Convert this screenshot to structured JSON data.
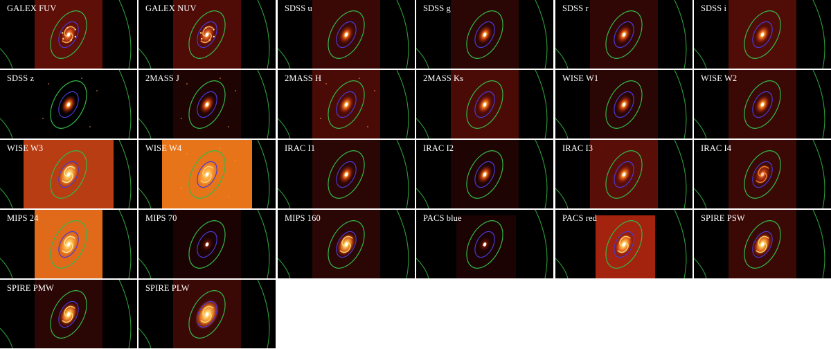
{
  "panels": [
    {
      "label": "GALEX FUV",
      "bg": "#5e0f08",
      "cov": "tall",
      "core": "spiral-blotchy"
    },
    {
      "label": "GALEX NUV",
      "bg": "#4f0c07",
      "cov": "tall",
      "core": "spiral-blotchy"
    },
    {
      "label": "SDSS u",
      "bg": "#3a0906",
      "cov": "tall",
      "core": "bulge"
    },
    {
      "label": "SDSS g",
      "bg": "#2a0604",
      "cov": "tall",
      "core": "bulge"
    },
    {
      "label": "SDSS r",
      "bg": "#300705",
      "cov": "tall",
      "core": "bulge"
    },
    {
      "label": "SDSS i",
      "bg": "#500c07",
      "cov": "tall",
      "core": "bulge-soft"
    },
    {
      "label": "SDSS z",
      "bg": "#000000",
      "cov": "tall",
      "core": "bulge"
    },
    {
      "label": "2MASS J",
      "bg": "#1e0403",
      "cov": "tall",
      "core": "bulge"
    },
    {
      "label": "2MASS H",
      "bg": "#4a0b06",
      "cov": "tall",
      "core": "bulge-soft"
    },
    {
      "label": "2MASS Ks",
      "bg": "#4a0b06",
      "cov": "tall",
      "core": "bulge-soft"
    },
    {
      "label": "WISE W1",
      "bg": "#2a0604",
      "cov": "tall",
      "core": "bulge"
    },
    {
      "label": "WISE W2",
      "bg": "#3a0906",
      "cov": "tall",
      "core": "bulge-soft"
    },
    {
      "label": "WISE W3",
      "bg": "#b83d12",
      "cov": "wide",
      "core": "spiral-bright"
    },
    {
      "label": "WISE W4",
      "bg": "#e8741a",
      "cov": "wide",
      "core": "spiral-ring"
    },
    {
      "label": "IRAC I1",
      "bg": "#2a0604",
      "cov": "tall",
      "core": "bulge"
    },
    {
      "label": "IRAC I2",
      "bg": "#1e0403",
      "cov": "tall",
      "core": "bulge"
    },
    {
      "label": "IRAC I3",
      "bg": "#5a0e08",
      "cov": "tall",
      "core": "bulge-soft"
    },
    {
      "label": "IRAC I4",
      "bg": "#3a0906",
      "cov": "tall",
      "core": "spiral-faint"
    },
    {
      "label": "MIPS 24",
      "bg": "#e0691a",
      "cov": "mid",
      "core": "spiral-bright"
    },
    {
      "label": "MIPS 70",
      "bg": "#1a0302",
      "cov": "tall",
      "core": "point"
    },
    {
      "label": "MIPS 160",
      "bg": "#2a0604",
      "cov": "tall",
      "core": "spiral-fire"
    },
    {
      "label": "PACS blue",
      "bg": "#1a0302",
      "cov": "box",
      "core": "point"
    },
    {
      "label": "PACS red",
      "bg": "#a3230e",
      "cov": "box",
      "core": "spiral-fire"
    },
    {
      "label": "SPIRE PSW",
      "bg": "#3a0906",
      "cov": "tall",
      "core": "spiral-fire"
    },
    {
      "label": "SPIRE PMW",
      "bg": "#2a0604",
      "cov": "tall",
      "core": "spiral-fire"
    },
    {
      "label": "SPIRE PLW",
      "bg": "#3a0906",
      "cov": "tall",
      "core": "spiral-big"
    }
  ]
}
